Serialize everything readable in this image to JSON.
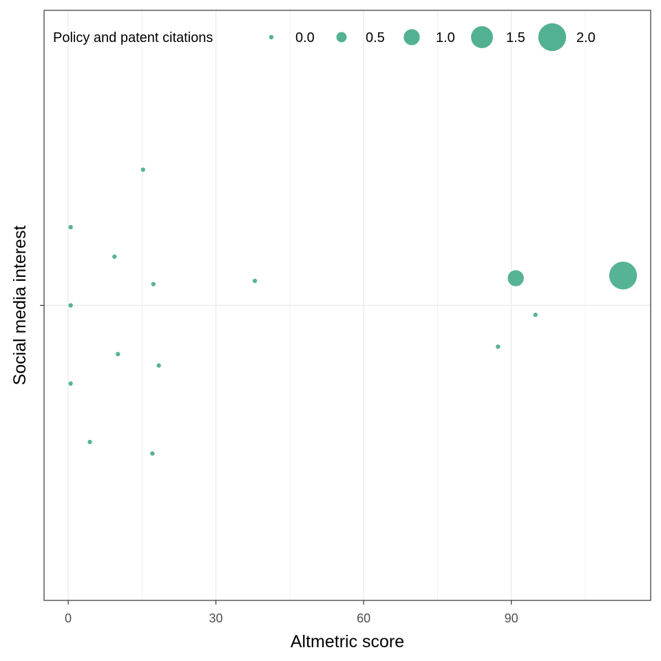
{
  "chart_data": {
    "type": "scatter",
    "xlabel": "Altmetric score",
    "ylabel": "Social media interest",
    "xlim": [
      -4.9,
      118.3
    ],
    "ylim": [
      -1.0,
      1.0
    ],
    "x_ticks": [
      0,
      30,
      60,
      90
    ],
    "x_minor_ticks": [
      15,
      45,
      75,
      105
    ],
    "y_ticks": [
      0
    ],
    "y_tick_labels": [
      ""
    ],
    "grid": true,
    "legend": {
      "title": "Policy and patent citations",
      "placement": "top",
      "entries": [
        {
          "label": "0.0",
          "size_value": 0.0
        },
        {
          "label": "0.5",
          "size_value": 0.5
        },
        {
          "label": "1.0",
          "size_value": 1.0
        },
        {
          "label": "1.5",
          "size_value": 1.5
        },
        {
          "label": "2.0",
          "size_value": 2.0
        }
      ]
    },
    "colors": {
      "points": "#52b193",
      "grid": "#ebebeb",
      "panel_border": "#333333"
    },
    "series": [
      {
        "points": [
          {
            "x": 15.2,
            "y": 0.46,
            "size": 0
          },
          {
            "x": 0.5,
            "y": 0.265,
            "size": 0
          },
          {
            "x": 9.4,
            "y": 0.165,
            "size": 0
          },
          {
            "x": 17.3,
            "y": 0.072,
            "size": 0
          },
          {
            "x": 37.9,
            "y": 0.083,
            "size": 0
          },
          {
            "x": 0.5,
            "y": 0.0,
            "size": 0
          },
          {
            "x": 10.1,
            "y": -0.165,
            "size": 0
          },
          {
            "x": 18.4,
            "y": -0.204,
            "size": 0
          },
          {
            "x": 0.5,
            "y": -0.265,
            "size": 0
          },
          {
            "x": 4.4,
            "y": -0.463,
            "size": 0
          },
          {
            "x": 17.1,
            "y": -0.502,
            "size": 0
          },
          {
            "x": 90.9,
            "y": 0.092,
            "size": 1
          },
          {
            "x": 112.7,
            "y": 0.101,
            "size": 2
          },
          {
            "x": 94.9,
            "y": -0.032,
            "size": 0
          },
          {
            "x": 87.3,
            "y": -0.14,
            "size": 0
          }
        ]
      }
    ]
  }
}
